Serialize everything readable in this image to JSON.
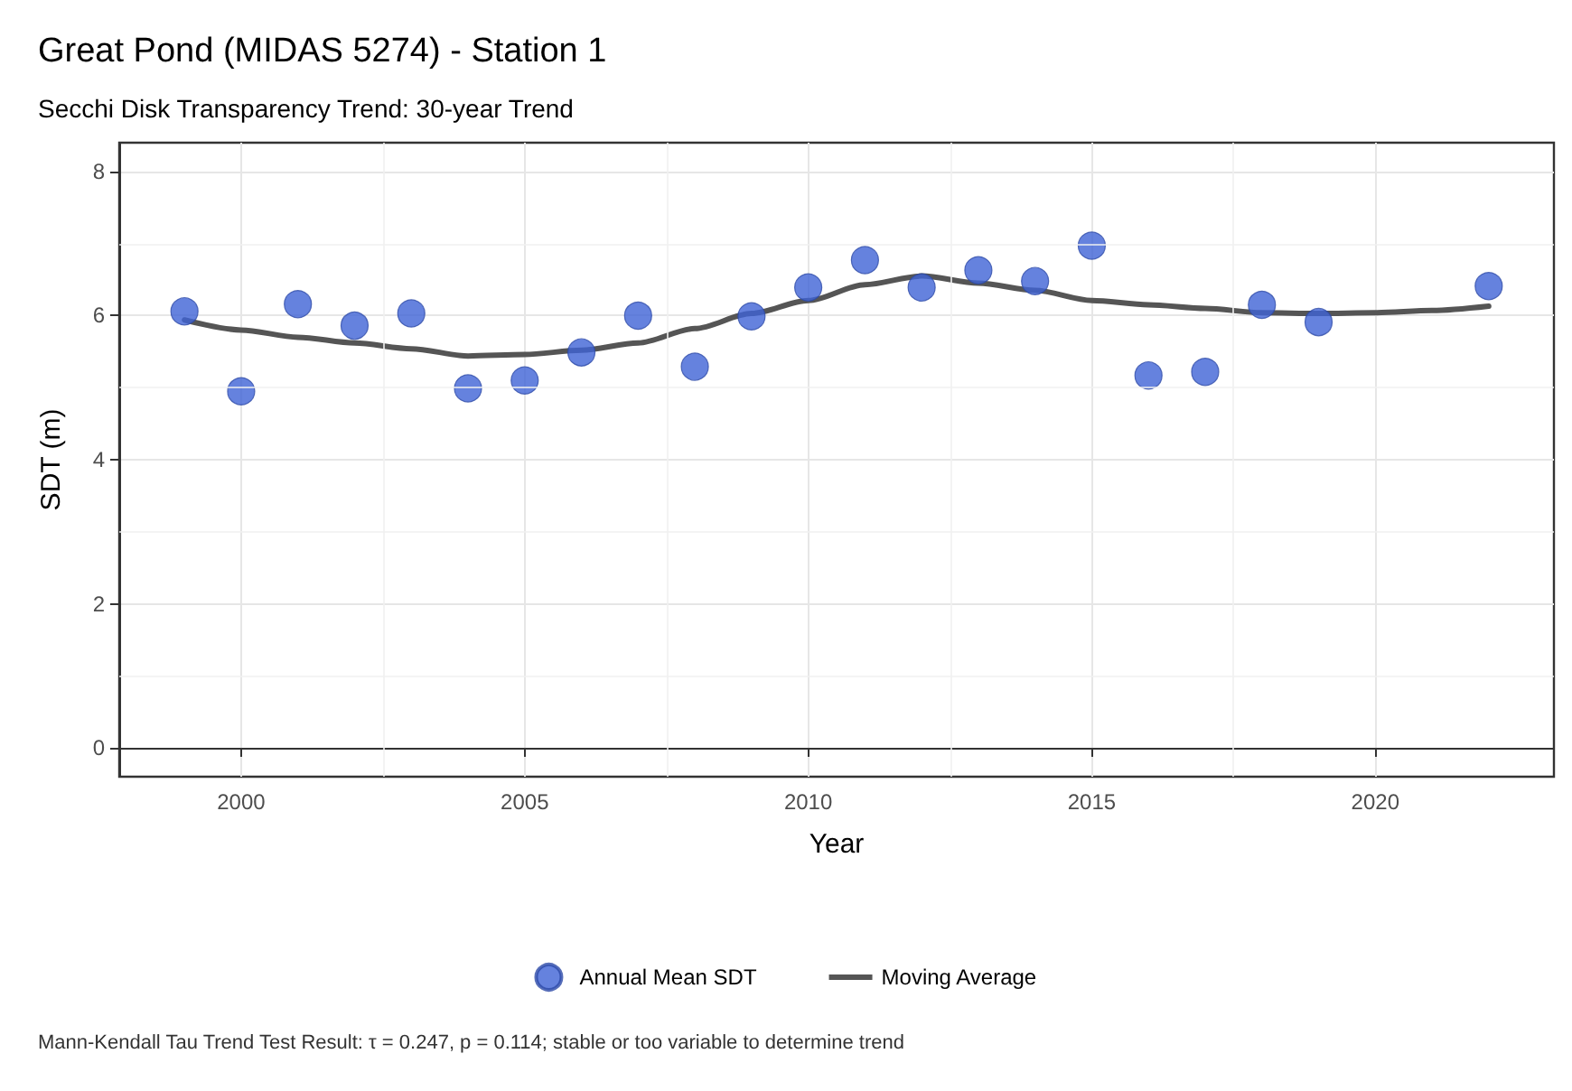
{
  "chart_data": {
    "type": "scatter",
    "title": "Great Pond (MIDAS 5274) - Station 1",
    "subtitle": "Secchi Disk Transparency Trend: 30-year Trend",
    "xlabel": "Year",
    "ylabel": "SDT (m)",
    "annotations": [
      "Mann-Kendall Tau Trend Test Result: τ = 0.247, p = 0.114; stable or too variable to determine trend"
    ],
    "series": [
      {
        "name": "Annual Mean SDT",
        "marker": "circle",
        "color": "#3f63d6",
        "x": [
          1999,
          2000,
          2001,
          2002,
          2003,
          2004,
          2005,
          2006,
          2007,
          2008,
          2009,
          2010,
          2011,
          2012,
          2013,
          2014,
          2015,
          2016,
          2017,
          2018,
          2019,
          2022
        ],
        "values": [
          6.06,
          4.95,
          6.16,
          5.86,
          6.03,
          4.99,
          5.1,
          5.49,
          6.0,
          5.29,
          5.99,
          6.39,
          6.77,
          6.39,
          6.63,
          6.48,
          6.97,
          5.17,
          5.22,
          6.15,
          5.91,
          6.41
        ]
      },
      {
        "name": "Moving Average",
        "type": "line",
        "marker": "none",
        "color": "#555555",
        "x": [
          1999,
          2000,
          2001,
          2002,
          2003,
          2004,
          2005,
          2006,
          2007,
          2008,
          2009,
          2010,
          2011,
          2012,
          2013,
          2014,
          2015,
          2016,
          2017,
          2018,
          2019,
          2020,
          2021,
          2022
        ],
        "values": [
          5.94,
          5.8,
          5.7,
          5.62,
          5.54,
          5.44,
          5.46,
          5.52,
          5.62,
          5.82,
          6.03,
          6.21,
          6.43,
          6.55,
          6.45,
          6.35,
          6.21,
          6.15,
          6.1,
          6.04,
          6.03,
          6.04,
          6.07,
          6.13
        ]
      }
    ],
    "xlim": [
      1997.85,
      2023.15
    ],
    "xticks": [
      2000,
      2005,
      2010,
      2015,
      2020
    ],
    "ylim": [
      -0.4,
      8.4
    ],
    "yticks": [
      0,
      2,
      4,
      6,
      8
    ],
    "grid": true,
    "legend": "bottom",
    "line_style": "solid"
  }
}
